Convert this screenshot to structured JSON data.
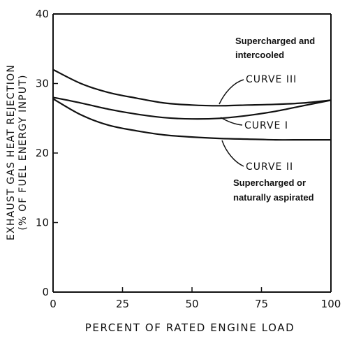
{
  "chart_data": {
    "type": "line",
    "xlabel": "PERCENT OF RATED ENGINE LOAD",
    "ylabel_line1": "EXHAUST GAS HEAT REJECTION",
    "ylabel_line2": "(% OF FUEL ENERGY INPUT)",
    "xlim": [
      0,
      100
    ],
    "ylim": [
      0,
      40
    ],
    "xticks": [
      0,
      25,
      50,
      75,
      100
    ],
    "yticks": [
      0,
      10,
      20,
      30,
      40
    ],
    "series": [
      {
        "name": "CURVE III",
        "annotation": [
          "Supercharged and",
          "intercooled"
        ],
        "x": [
          0,
          10,
          20,
          30,
          40,
          50,
          60,
          70,
          80,
          90,
          100
        ],
        "y": [
          32,
          30.0,
          28.7,
          27.9,
          27.2,
          26.9,
          26.8,
          26.9,
          27.0,
          27.2,
          27.6
        ]
      },
      {
        "name": "CURVE I",
        "x": [
          0,
          10,
          20,
          30,
          40,
          50,
          60,
          70,
          80,
          90,
          100
        ],
        "y": [
          28,
          27.2,
          26.3,
          25.6,
          25.1,
          24.9,
          25.0,
          25.4,
          26.0,
          26.8,
          27.6
        ]
      },
      {
        "name": "CURVE II",
        "annotation": [
          "Supercharged or",
          "naturally aspirated"
        ],
        "x": [
          0,
          10,
          20,
          30,
          40,
          50,
          60,
          70,
          80,
          90,
          100
        ],
        "y": [
          27.8,
          25.5,
          24.0,
          23.2,
          22.6,
          22.3,
          22.1,
          22.0,
          21.9,
          21.9,
          21.9
        ]
      }
    ]
  }
}
